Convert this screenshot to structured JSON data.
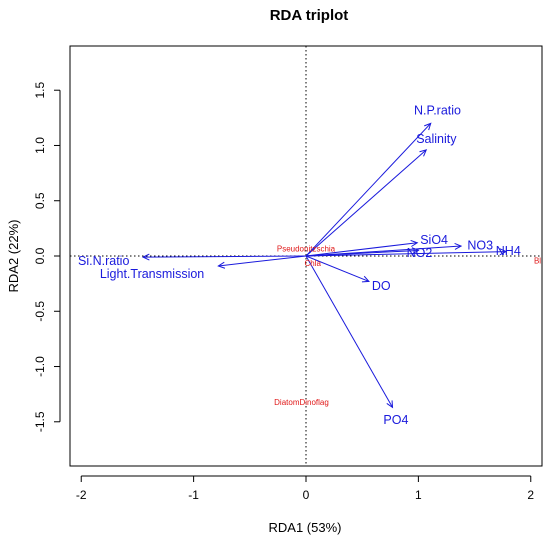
{
  "chart_data": {
    "type": "scatter",
    "title": "RDA triplot",
    "xlabel": "RDA1 (53%)",
    "ylabel": "RDA2 (22%)",
    "xlim": [
      -2.1,
      2.1
    ],
    "ylim": [
      -1.9,
      1.9
    ],
    "x_ticks": [
      -2,
      -1,
      0,
      1,
      2
    ],
    "y_ticks": [
      -1.5,
      -1.0,
      -0.5,
      0.0,
      0.5,
      1.0,
      1.5
    ],
    "x_tick_labels": [
      "-2",
      "-1",
      "0",
      "1",
      "2"
    ],
    "y_tick_labels": [
      "-1.5",
      "-1.0",
      "-0.5",
      "0.0",
      "0.5",
      "1.0",
      "1.5"
    ],
    "zero_lines": true,
    "environmental_vectors": [
      {
        "name": "N.P.ratio",
        "x": 1.11,
        "y": 1.2,
        "label_x": 1.17,
        "label_y": 1.31
      },
      {
        "name": "Salinity",
        "x": 1.07,
        "y": 0.96,
        "label_x": 1.16,
        "label_y": 1.05
      },
      {
        "name": "SiO4",
        "x": 0.99,
        "y": 0.12,
        "label_x": 1.14,
        "label_y": 0.14
      },
      {
        "name": "NO3",
        "x": 1.38,
        "y": 0.09,
        "label_x": 1.55,
        "label_y": 0.09
      },
      {
        "name": "NO2",
        "x": 1.0,
        "y": 0.05,
        "label_x": 1.01,
        "label_y": 0.02
      },
      {
        "name": "NH4",
        "x": 1.78,
        "y": 0.04,
        "label_x": 1.8,
        "label_y": 0.04
      },
      {
        "name": "DO",
        "x": 0.56,
        "y": -0.23,
        "label_x": 0.67,
        "label_y": -0.28
      },
      {
        "name": "PO4",
        "x": 0.77,
        "y": -1.37,
        "label_x": 0.8,
        "label_y": -1.49
      },
      {
        "name": "Si.N.ratio",
        "x": -1.45,
        "y": -0.01,
        "label_x": -1.8,
        "label_y": -0.05
      },
      {
        "name": "Light.Transmission",
        "x": -0.78,
        "y": -0.09,
        "label_x": -1.37,
        "label_y": -0.17
      }
    ],
    "species_scores": [
      {
        "name": "Pseudonitzschia",
        "x": 0.0,
        "y": 0.06
      },
      {
        "name": "Chla",
        "x": 0.06,
        "y": -0.07
      },
      {
        "name": "Bl",
        "x": 2.06,
        "y": -0.05
      },
      {
        "name": "DiatomDinoflag",
        "x": -0.04,
        "y": -1.33
      }
    ]
  }
}
